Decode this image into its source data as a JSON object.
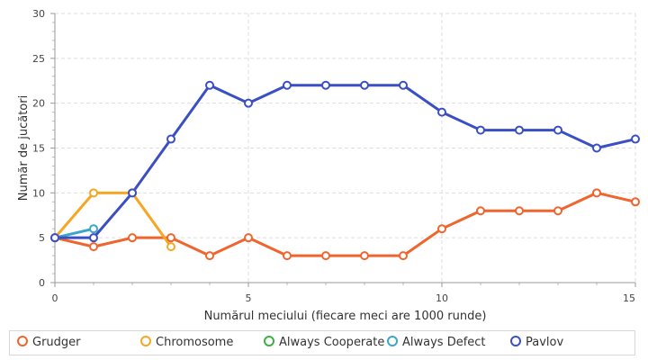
{
  "chart_data": {
    "type": "line",
    "xlabel": "Numărul meciului (fiecare meci are 1000 runde)",
    "ylabel": "Număr de jucători",
    "xlim": [
      0,
      15
    ],
    "ylim": [
      0,
      30
    ],
    "x_ticks": [
      0,
      5,
      10,
      15
    ],
    "y_ticks": [
      0,
      5,
      10,
      15,
      20,
      25,
      30
    ],
    "grid": true,
    "legend_position": "bottom",
    "series": [
      {
        "name": "Grudger",
        "color": "#f0642d",
        "x": [
          0,
          1,
          2,
          3,
          4,
          5,
          6,
          7,
          8,
          9,
          10,
          11,
          12,
          13,
          14,
          15
        ],
        "y": [
          5,
          4,
          5,
          5,
          3,
          5,
          3,
          3,
          3,
          3,
          6,
          8,
          8,
          8,
          10,
          9
        ]
      },
      {
        "name": "Chromosome",
        "color": "#f5a623",
        "x": [
          0,
          1,
          2,
          3
        ],
        "y": [
          5,
          10,
          10,
          4
        ]
      },
      {
        "name": "Always Cooperate",
        "color": "#3cb043",
        "x": [],
        "y": []
      },
      {
        "name": "Always Defect",
        "color": "#3aa6c8",
        "x": [
          0,
          1
        ],
        "y": [
          5,
          6
        ]
      },
      {
        "name": "Pavlov",
        "color": "#3b4fc4",
        "x": [
          0,
          1,
          2,
          3,
          4,
          5,
          6,
          7,
          8,
          9,
          10,
          11,
          12,
          13,
          14,
          15
        ],
        "y": [
          5,
          5,
          10,
          16,
          22,
          20,
          22,
          22,
          22,
          22,
          19,
          17,
          17,
          17,
          15,
          16
        ]
      }
    ]
  }
}
